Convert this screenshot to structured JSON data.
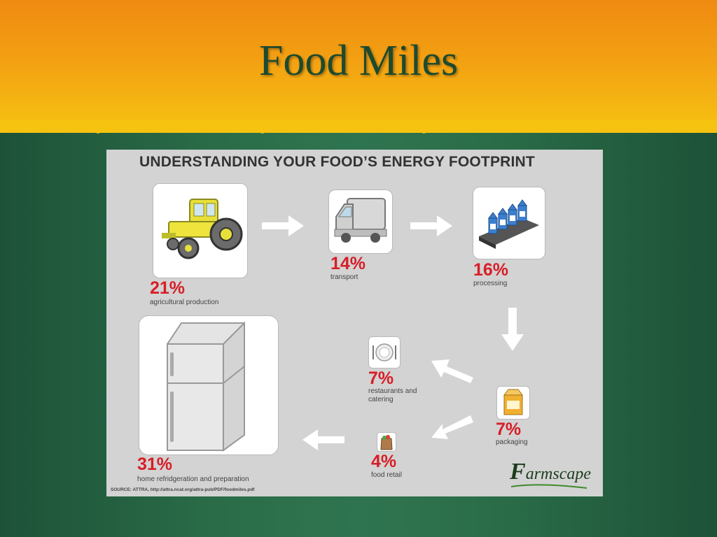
{
  "slide": {
    "title": "Food Miles"
  },
  "infographic": {
    "heading": "UNDERSTANDING YOUR FOOD’S ENERGY FOOTPRINT",
    "stages": [
      {
        "id": "agricultural",
        "percent": "21%",
        "label": "agricultural production",
        "icon": "tractor-icon"
      },
      {
        "id": "transport",
        "percent": "14%",
        "label": "transport",
        "icon": "truck-icon"
      },
      {
        "id": "processing",
        "percent": "16%",
        "label": "processing",
        "icon": "conveyor-cartons-icon"
      },
      {
        "id": "packaging",
        "percent": "7%",
        "label": "packaging",
        "icon": "box-icon"
      },
      {
        "id": "restaurants",
        "percent": "7%",
        "label_line1": "restaurants and",
        "label_line2": "catering",
        "icon": "plate-icon"
      },
      {
        "id": "retail",
        "percent": "4%",
        "label": "food retail",
        "icon": "grocery-bag-icon"
      },
      {
        "id": "home",
        "percent": "31%",
        "label": "home refridgeration and preparation",
        "icon": "refrigerator-icon"
      }
    ],
    "source": "SOURCE:  ATTRA, http://attra.ncat.org/attra-pub/PDF/foodmiles.pdf",
    "brand": {
      "name_initial": "F",
      "name_rest": "armscape"
    },
    "colors": {
      "accent": "#d71e27",
      "panel": "#d3d3d3",
      "banner": "#f3a012",
      "background": "#2a6c48"
    }
  }
}
